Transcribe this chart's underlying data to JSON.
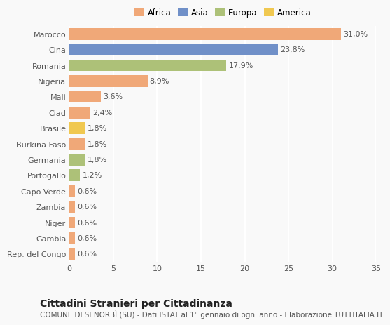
{
  "categories": [
    "Rep. del Congo",
    "Gambia",
    "Niger",
    "Zambia",
    "Capo Verde",
    "Portogallo",
    "Germania",
    "Burkina Faso",
    "Brasile",
    "Ciad",
    "Mali",
    "Nigeria",
    "Romania",
    "Cina",
    "Marocco"
  ],
  "values": [
    0.6,
    0.6,
    0.6,
    0.6,
    0.6,
    1.2,
    1.8,
    1.8,
    1.8,
    2.4,
    3.6,
    8.9,
    17.9,
    23.8,
    31.0
  ],
  "labels": [
    "0,6%",
    "0,6%",
    "0,6%",
    "0,6%",
    "0,6%",
    "1,2%",
    "1,8%",
    "1,8%",
    "1,8%",
    "2,4%",
    "3,6%",
    "8,9%",
    "17,9%",
    "23,8%",
    "31,0%"
  ],
  "colors": [
    "#f0a878",
    "#f0a878",
    "#f0a878",
    "#f0a878",
    "#f0a878",
    "#adc178",
    "#adc178",
    "#f0a878",
    "#f0c850",
    "#f0a878",
    "#f0a878",
    "#f0a878",
    "#adc178",
    "#7090c8",
    "#f0a878"
  ],
  "legend": [
    {
      "label": "Africa",
      "color": "#f0a878"
    },
    {
      "label": "Asia",
      "color": "#7090c8"
    },
    {
      "label": "Europa",
      "color": "#adc178"
    },
    {
      "label": "America",
      "color": "#f0c850"
    }
  ],
  "xlim": [
    0,
    35
  ],
  "xticks": [
    0,
    5,
    10,
    15,
    20,
    25,
    30,
    35
  ],
  "title": "Cittadini Stranieri per Cittadinanza",
  "subtitle": "COMUNE DI SENORBÌ (SU) - Dati ISTAT al 1° gennaio di ogni anno - Elaborazione TUTTITALIA.IT",
  "bg_color": "#f9f9f9",
  "grid_color": "#ffffff",
  "bar_height": 0.75,
  "label_fontsize": 8,
  "tick_fontsize": 8,
  "title_fontsize": 10,
  "subtitle_fontsize": 7.5
}
